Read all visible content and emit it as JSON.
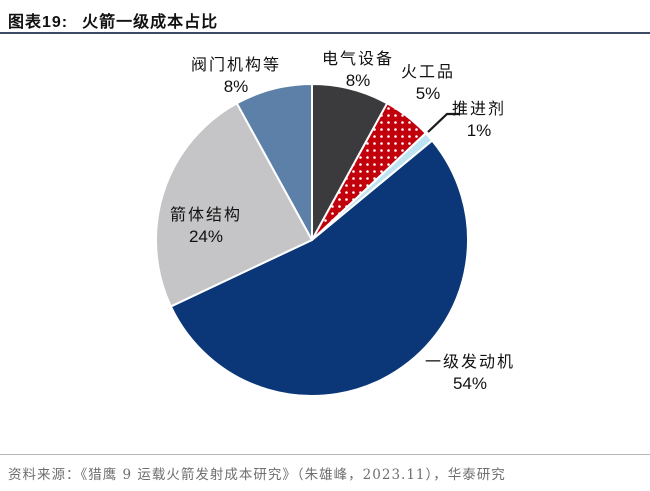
{
  "header": {
    "figure_label": "图表19:",
    "figure_title": "火箭一级成本占比"
  },
  "chart_data": {
    "type": "pie",
    "title": "火箭一级成本占比",
    "unit": "percent",
    "start_angle_deg": 0,
    "direction": "clockwise",
    "total": 100,
    "slices": [
      {
        "key": "electrical-equipment",
        "label": "电气设备",
        "value": 8,
        "percent_label": "8%",
        "color": "#3B3B3D",
        "pattern": "solid"
      },
      {
        "key": "pyrotechnics",
        "label": "火工品",
        "value": 5,
        "percent_label": "5%",
        "color": "#C2000B",
        "pattern": "white-dots"
      },
      {
        "key": "propellant",
        "label": "推进剂",
        "value": 1,
        "percent_label": "1%",
        "color": "#BEE3F1",
        "pattern": "solid"
      },
      {
        "key": "first-stage-engine",
        "label": "一级发动机",
        "value": 54,
        "percent_label": "54%",
        "color": "#0B3778",
        "pattern": "solid"
      },
      {
        "key": "rocket-body-structure",
        "label": "箭体结构",
        "value": 24,
        "percent_label": "24%",
        "color": "#C5C5C7",
        "pattern": "solid"
      },
      {
        "key": "valve-mechanisms",
        "label": "阀门机构等",
        "value": 8,
        "percent_label": "8%",
        "color": "#5D80A8",
        "pattern": "solid"
      }
    ]
  },
  "footer": {
    "source_text": "资料来源：《猎鹰 9 运载火箭发射成本研究》（朱雄峰，2023.11），华泰研究"
  }
}
